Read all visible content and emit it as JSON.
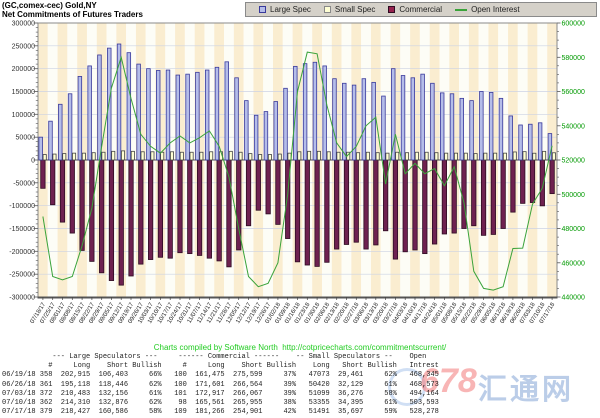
{
  "title": {
    "line1": "(GC,comex-cec) Gold,NY",
    "line2": "Net Commitments of Futures Traders"
  },
  "legend": {
    "items": [
      {
        "label": "Large Spec"
      },
      {
        "label": "Small Spec"
      },
      {
        "label": "Commercial"
      },
      {
        "label": "Open Interest"
      }
    ]
  },
  "colors": {
    "stripe_a": "#faeDD0",
    "stripe_b": "#fdfdf6",
    "grid": "#ccd2e4",
    "large_spec_fill": "#b5bde9",
    "large_spec_stroke": "#39399b",
    "small_spec_fill": "#ffffd4",
    "small_spec_stroke": "#444444",
    "commercial_fill": "#6e2150",
    "commercial_stroke": "#2e0c22",
    "legend_commercial": "#96224e",
    "oi_line": "#3aa33a",
    "right_axis_text": "#009900",
    "left_axis_text": "#333333",
    "plot_border": "#8a8a8a",
    "zero_line": "#222222",
    "axis_dark": "#555555",
    "credit_green": "#22cc22"
  },
  "chart_data": {
    "type": "bar+line",
    "title": "Net Commitments of Futures Traders",
    "grid": true,
    "left_axis": {
      "min": -300000,
      "max": 300000,
      "step": 50000,
      "minor_step": 10000
    },
    "right_axis": {
      "min": 440000,
      "max": 600000,
      "step": 20000,
      "minor_step": 5000
    },
    "x": [
      "07/18/17",
      "07/25/17",
      "08/01/17",
      "08/08/17",
      "08/15/17",
      "08/22/17",
      "08/29/17",
      "09/05/17",
      "09/12/17",
      "09/19/17",
      "09/26/17",
      "10/03/17",
      "10/10/17",
      "10/17/17",
      "10/24/17",
      "10/31/17",
      "11/07/17",
      "11/14/17",
      "11/21/17",
      "11/28/17",
      "12/05/17",
      "12/12/17",
      "12/19/17",
      "12/26/17",
      "01/02/18",
      "01/09/18",
      "01/16/18",
      "01/23/18",
      "01/30/18",
      "02/06/18",
      "02/13/18",
      "02/20/18",
      "02/27/18",
      "03/06/18",
      "03/13/18",
      "03/20/18",
      "03/27/18",
      "04/03/18",
      "04/10/18",
      "04/17/18",
      "04/24/18",
      "05/01/18",
      "05/08/18",
      "05/15/18",
      "05/22/18",
      "05/29/18",
      "06/05/18",
      "06/12/18",
      "06/19/18",
      "06/26/18",
      "07/03/18",
      "07/10/18",
      "07/17/18"
    ],
    "series": [
      {
        "name": "Large Spec",
        "type": "bar",
        "axis": "left",
        "values": [
          50000,
          85000,
          122000,
          145000,
          183000,
          206000,
          230000,
          245000,
          254000,
          235000,
          210000,
          200000,
          196000,
          197000,
          186000,
          188000,
          192000,
          197000,
          203000,
          215000,
          180000,
          130000,
          98000,
          106000,
          128000,
          157000,
          205000,
          211000,
          214000,
          206000,
          178000,
          168000,
          164000,
          178000,
          170000,
          140000,
          200000,
          185000,
          180000,
          188000,
          168000,
          147000,
          145000,
          135000,
          130000,
          150000,
          148000,
          135000,
          96512,
          76672,
          78327,
          81434,
          57841
        ]
      },
      {
        "name": "Small Spec",
        "type": "bar",
        "axis": "left",
        "values": [
          12000,
          13000,
          14000,
          15000,
          15000,
          16000,
          17000,
          19000,
          20000,
          19000,
          18000,
          18000,
          17000,
          18000,
          17000,
          17000,
          17000,
          18000,
          18000,
          19000,
          17000,
          14000,
          12000,
          12000,
          13000,
          15000,
          18000,
          19000,
          19000,
          18000,
          17000,
          17000,
          16000,
          17000,
          16000,
          15000,
          17000,
          16000,
          17000,
          17000,
          16000,
          15000,
          15000,
          15000,
          14000,
          15000,
          15000,
          15000,
          17612,
          18291,
          14823,
          18960,
          15794
        ]
      },
      {
        "name": "Commercial",
        "type": "bar",
        "axis": "left",
        "values": [
          -62000,
          -98000,
          -136000,
          -160000,
          -198000,
          -222000,
          -247000,
          -264000,
          -274000,
          -254000,
          -228000,
          -218000,
          -213000,
          -215000,
          -203000,
          -205000,
          -209000,
          -215000,
          -221000,
          -234000,
          -197000,
          -144000,
          -110000,
          -118000,
          -141000,
          -172000,
          -223000,
          -230000,
          -233000,
          -224000,
          -195000,
          -185000,
          -180000,
          -195000,
          -186000,
          -155000,
          -217000,
          -201000,
          -197000,
          -205000,
          -184000,
          -162000,
          -160000,
          -150000,
          -144000,
          -165000,
          -163000,
          -150000,
          -114124,
          -94963,
          -93150,
          -100394,
          -73635
        ]
      },
      {
        "name": "Open Interest",
        "type": "line",
        "axis": "right",
        "values": [
          487000,
          452000,
          450000,
          452000,
          470000,
          492000,
          528000,
          562000,
          580000,
          556000,
          535000,
          528000,
          524000,
          530000,
          534000,
          530000,
          533000,
          537000,
          528000,
          510000,
          480000,
          452000,
          446000,
          448000,
          460000,
          500000,
          560000,
          583000,
          582000,
          552000,
          530000,
          522000,
          528000,
          540000,
          545000,
          506000,
          535000,
          512000,
          518000,
          512000,
          515000,
          505000,
          516000,
          495000,
          455000,
          445000,
          444000,
          446000,
          468345,
          468573,
          494164,
          503593,
          528278
        ]
      }
    ]
  },
  "credit": {
    "text": "Charts compiled by Software North  ",
    "url": "http://cotpricecharts.com/commitmentscurrent/"
  },
  "table": {
    "group_headers": [
      "--- Large Speculators ---",
      "------ Commercial ------",
      "-- Small Speculators --",
      "Open"
    ],
    "columns": [
      "",
      "#",
      "Long",
      "Short",
      "Bullish",
      "#",
      "Long",
      "Short",
      "Bullish",
      "Long",
      "Short",
      "Bullish",
      "Intrest"
    ],
    "rows": [
      [
        "06/19/18",
        "358",
        "202,915",
        "106,403",
        "66%",
        "100",
        "161,475",
        "275,599",
        "37%",
        "47073",
        "29,461",
        "62%",
        "468,345"
      ],
      [
        "06/26/18",
        "361",
        "195,118",
        "118,446",
        "62%",
        "100",
        "171,601",
        "266,564",
        "39%",
        "50420",
        "32,129",
        "61%",
        "468,573"
      ],
      [
        "07/03/18",
        "372",
        "210,483",
        "132,156",
        "61%",
        "101",
        "172,917",
        "266,067",
        "39%",
        "51099",
        "36,276",
        "58%",
        "494,164"
      ],
      [
        "07/10/18",
        "362",
        "214,310",
        "132,876",
        "62%",
        "98",
        "165,561",
        "265,955",
        "38%",
        "53355",
        "34,395",
        "61%",
        "503,593"
      ],
      [
        "07/17/18",
        "379",
        "218,427",
        "160,586",
        "58%",
        "109",
        "181,266",
        "254,901",
        "42%",
        "51491",
        "35,697",
        "59%",
        "528,278"
      ]
    ]
  },
  "watermark": {
    "number": "678",
    "cjk": "汇通网"
  }
}
